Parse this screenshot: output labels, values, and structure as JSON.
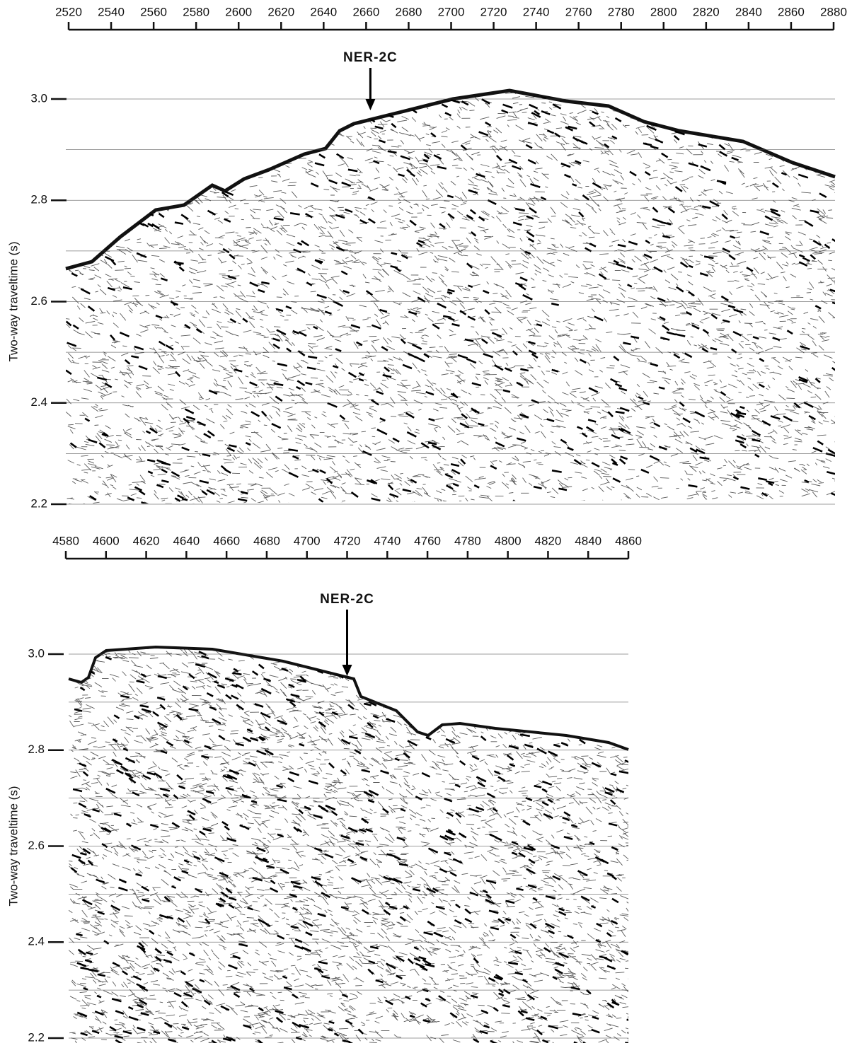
{
  "chart_data": [
    {
      "type": "seismic",
      "xlim": [
        2520,
        2880
      ],
      "xticks": [
        2520,
        2540,
        2560,
        2580,
        2600,
        2620,
        2640,
        2660,
        2680,
        2700,
        2720,
        2740,
        2760,
        2780,
        2800,
        2820,
        2840,
        2860,
        2880
      ],
      "ylim": [
        2.2,
        3.0
      ],
      "yticks": [
        2.2,
        2.4,
        2.6,
        2.8,
        {
          "value": 3,
          "label": "3.0"
        }
      ],
      "minor_yticks": [
        2.3,
        2.5,
        2.7,
        2.9
      ],
      "y_label": "Two-way traveltime (s)",
      "annotation": {
        "text": "NER-2C",
        "x": 2662
      }
    },
    {
      "type": "seismic",
      "xlim": [
        4580,
        4860
      ],
      "xticks": [
        4580,
        4600,
        4620,
        4640,
        4660,
        4680,
        4700,
        4720,
        4740,
        4760,
        4780,
        4800,
        4820,
        4840,
        4860
      ],
      "ylim": [
        2.2,
        3.0
      ],
      "yticks": [
        2.2,
        2.4,
        2.6,
        2.8,
        {
          "value": 3,
          "label": "3.0"
        }
      ],
      "minor_yticks": [
        2.3,
        2.5,
        2.7,
        2.9
      ],
      "y_label": "Two-way traveltime (s)",
      "annotation": {
        "text": "NER-2C",
        "x": 4720
      }
    }
  ]
}
